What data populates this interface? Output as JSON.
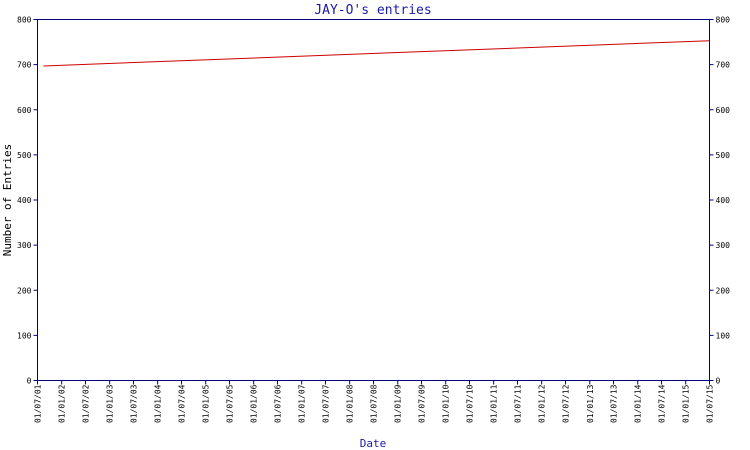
{
  "chart_data": {
    "type": "line",
    "title": "JAY-O's entries",
    "xlabel": "Date",
    "ylabel": "Number of Entries",
    "ylim": [
      0,
      800
    ],
    "y_ticks": [
      0,
      100,
      200,
      300,
      400,
      500,
      600,
      700,
      800
    ],
    "x_tick_labels": [
      "01/07/01",
      "01/01/02",
      "01/07/02",
      "01/01/03",
      "01/07/03",
      "01/01/04",
      "01/07/04",
      "01/01/05",
      "01/07/05",
      "01/01/06",
      "01/07/06",
      "01/01/07",
      "01/07/07",
      "01/01/08",
      "01/07/08",
      "01/01/09",
      "01/07/09",
      "01/01/10",
      "01/07/10",
      "01/01/11",
      "01/07/11",
      "01/01/12",
      "01/07/12",
      "01/01/13",
      "01/07/13",
      "01/01/14",
      "01/07/14",
      "01/01/15",
      "01/07/15"
    ],
    "x_range": [
      "01/07/01",
      "01/07/15"
    ],
    "grid": false,
    "series": [
      {
        "color": "#cc0000",
        "x": [
          "15/08/01",
          "01/07/15"
        ],
        "values": [
          697,
          753
        ]
      }
    ],
    "colors": {
      "frame": "#00007f",
      "title": "#1a1aa6",
      "line": "#cc0000"
    }
  }
}
